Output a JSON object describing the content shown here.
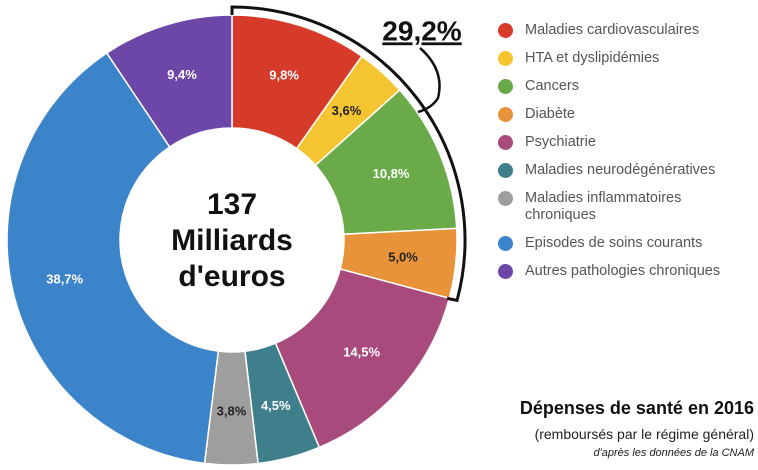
{
  "chart_data": {
    "type": "donut",
    "center_label": [
      "137",
      "Milliards",
      "d'euros"
    ],
    "annotation": "29,2%",
    "title": "Dépenses de santé en 2016",
    "subtitle": "(remboursés par le régime général)",
    "source": "d'après les données de la CNAM",
    "categories": [
      "Maladies cardiovasculaires",
      "HTA et dyslipidémies",
      "Cancers",
      "Diabète",
      "Psychiatrie",
      "Maladies neurodégénératives",
      "Maladies inflammatoires chroniques",
      "Episodes de soins courants",
      "Autres pathologies chroniques"
    ],
    "values": [
      9.8,
      3.6,
      10.8,
      5.0,
      14.5,
      4.5,
      3.8,
      38.7,
      9.4
    ],
    "value_labels": [
      "9,8%",
      "3,6%",
      "10,8%",
      "5,0%",
      "14,5%",
      "4,5%",
      "3,8%",
      "38,7%",
      "9,4%"
    ],
    "colors": [
      "#d63b2a",
      "#f4c531",
      "#6aaa48",
      "#e8923a",
      "#a84a7c",
      "#3f7f8c",
      "#9e9e9e",
      "#3b84c9",
      "#6d47a8"
    ],
    "legend": "right"
  }
}
